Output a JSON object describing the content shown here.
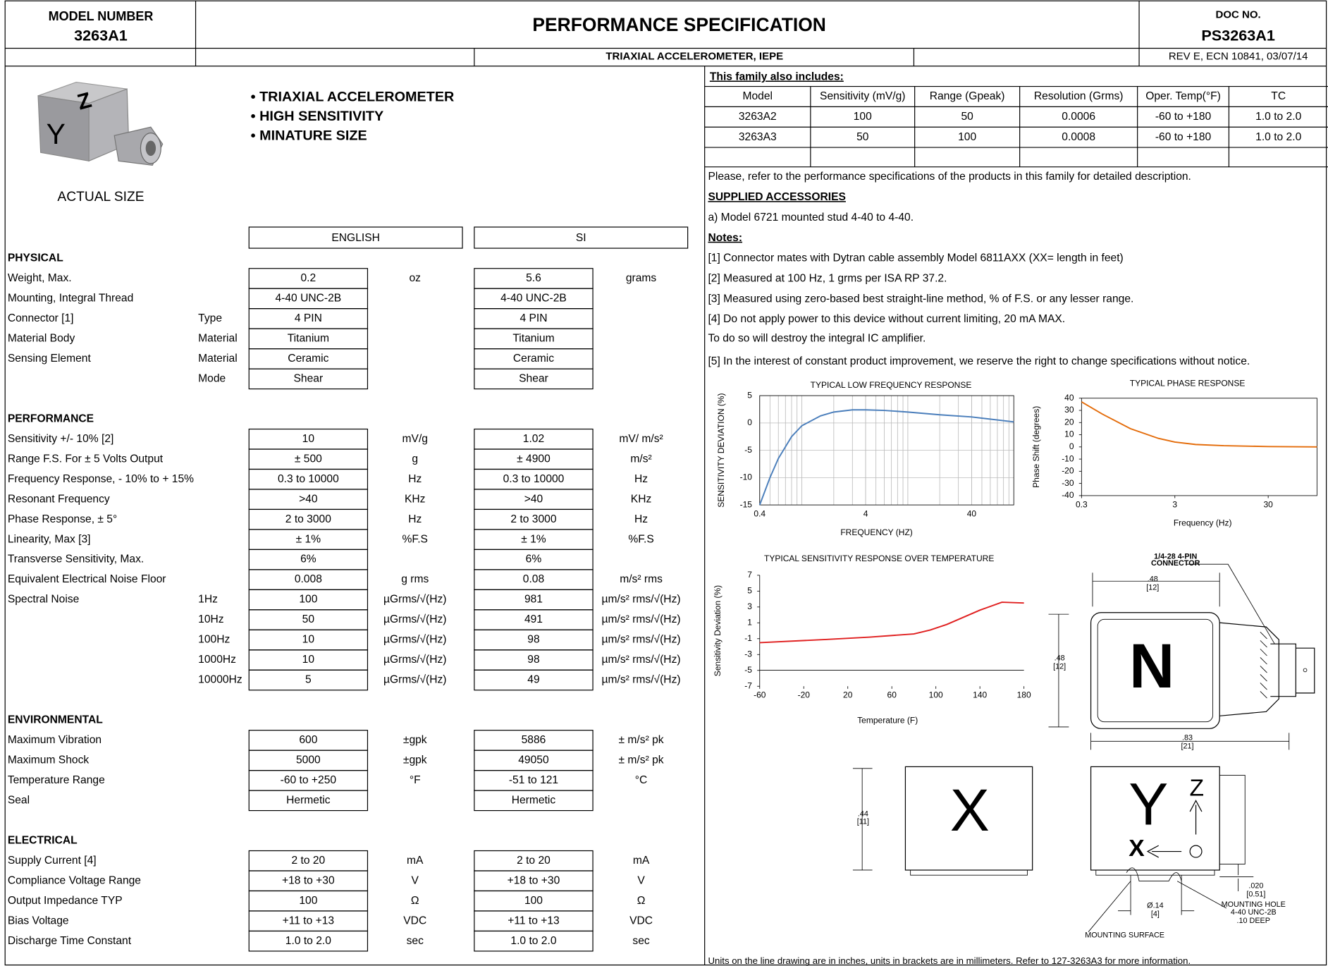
{
  "header": {
    "model_label": "MODEL NUMBER",
    "model_number": "3263A1",
    "title": "PERFORMANCE SPECIFICATION",
    "doc_label": "DOC NO.",
    "doc_number": "PS3263A1",
    "description": "TRIAXIAL ACCELEROMETER, IEPE",
    "revision": "REV E, ECN 10841, 03/07/14"
  },
  "product": {
    "photo_labels": [
      "Z",
      "Y"
    ],
    "caption": "ACTUAL SIZE",
    "features": [
      "• TRIAXIAL ACCELEROMETER",
      "• HIGH SENSITIVITY",
      "• MINATURE SIZE"
    ]
  },
  "spec_columns": [
    "ENGLISH",
    "SI"
  ],
  "sections": [
    {
      "title": "PHYSICAL",
      "rows": [
        {
          "label": "Weight, Max.",
          "english": "0.2",
          "english_unit": "oz",
          "si": "5.6",
          "si_unit": "grams"
        },
        {
          "label": "Mounting, Integral Thread",
          "english": "4-40 UNC-2B",
          "si": "4-40 UNC-2B"
        },
        {
          "label": "Connector [1]",
          "sub": "Type",
          "english": "4 PIN",
          "si": "4 PIN"
        },
        {
          "label": "Material Body",
          "sub": "Material",
          "english": "Titanium",
          "si": "Titanium"
        },
        {
          "label": "Sensing Element",
          "sub": "Material",
          "english": "Ceramic",
          "si": "Ceramic"
        },
        {
          "sub": "Mode",
          "english": "Shear",
          "si": "Shear"
        }
      ]
    },
    {
      "title": "PERFORMANCE",
      "rows": [
        {
          "label": "Sensitivity +/- 10%  [2]",
          "english": "10",
          "english_unit": "mV/g",
          "si": "1.02",
          "si_unit": "mV/ m/s²"
        },
        {
          "label": "Range F.S. For ± 5 Volts Output",
          "english": "± 500",
          "english_unit": "g",
          "si": "± 4900",
          "si_unit": "m/s²"
        },
        {
          "label": "Frequency Response, - 10% to + 15%",
          "english": "0.3 to 10000",
          "english_unit": "Hz",
          "si": "0.3 to 10000",
          "si_unit": "Hz"
        },
        {
          "label": "Resonant Frequency",
          "english": ">40",
          "english_unit": "KHz",
          "si": ">40",
          "si_unit": "KHz"
        },
        {
          "label": "Phase Response, ± 5°",
          "english": "2 to 3000",
          "english_unit": "Hz",
          "si": "2 to 3000",
          "si_unit": "Hz"
        },
        {
          "label": "Linearity, Max [3]",
          "english": "± 1%",
          "english_unit": "%F.S",
          "si": "± 1%",
          "si_unit": "%F.S"
        },
        {
          "label": "Transverse Sensitivity, Max.",
          "english": "6%",
          "si": "6%"
        },
        {
          "label": "Equivalent Electrical Noise Floor",
          "english": "0.008",
          "english_unit": "g rms",
          "si": "0.08",
          "si_unit": "m/s² rms"
        },
        {
          "label": "Spectral Noise",
          "sub": "1Hz",
          "english": "100",
          "english_unit": "µGrms/√(Hz)",
          "si": "981",
          "si_unit": "µm/s² rms/√(Hz)"
        },
        {
          "sub": "10Hz",
          "english": "50",
          "english_unit": "µGrms/√(Hz)",
          "si": "491",
          "si_unit": "µm/s² rms/√(Hz)"
        },
        {
          "sub": "100Hz",
          "english": "10",
          "english_unit": "µGrms/√(Hz)",
          "si": "98",
          "si_unit": "µm/s² rms/√(Hz)"
        },
        {
          "sub": "1000Hz",
          "english": "10",
          "english_unit": "µGrms/√(Hz)",
          "si": "98",
          "si_unit": "µm/s² rms/√(Hz)"
        },
        {
          "sub": "10000Hz",
          "english": "5",
          "english_unit": "µGrms/√(Hz)",
          "si": "49",
          "si_unit": "µm/s² rms/√(Hz)"
        }
      ]
    },
    {
      "title": "ENVIRONMENTAL",
      "rows": [
        {
          "label": "Maximum Vibration",
          "english": "600",
          "english_unit": "±gpk",
          "si": "5886",
          "si_unit": "± m/s² pk"
        },
        {
          "label": "Maximum Shock",
          "english": "5000",
          "english_unit": "±gpk",
          "si": "49050",
          "si_unit": "± m/s² pk"
        },
        {
          "label": "Temperature Range",
          "english": "-60 to +250",
          "english_unit": "°F",
          "si": "-51 to 121",
          "si_unit": "°C"
        },
        {
          "label": "Seal",
          "english": "Hermetic",
          "si": "Hermetic"
        }
      ]
    },
    {
      "title": "ELECTRICAL",
      "rows": [
        {
          "label": "Supply Current  [4]",
          "english": "2 to 20",
          "english_unit": "mA",
          "si": "2 to 20",
          "si_unit": "mA"
        },
        {
          "label": "Compliance Voltage Range",
          "english": "+18 to +30",
          "english_unit": "V",
          "si": "+18 to +30",
          "si_unit": "V"
        },
        {
          "label": "Output Impedance TYP",
          "english": "100",
          "english_unit": "Ω",
          "si": "100",
          "si_unit": "Ω"
        },
        {
          "label": " Bias Voltage",
          "english": "+11 to +13",
          "english_unit": "VDC",
          "si": "+11 to +13",
          "si_unit": "VDC"
        },
        {
          "label": "Discharge Time Constant",
          "english": "1.0 to 2.0",
          "english_unit": "sec",
          "si": "1.0 to 2.0",
          "si_unit": "sec"
        }
      ]
    }
  ],
  "family": {
    "heading": "This family also includes:",
    "columns": [
      "Model",
      "Sensitivity (mV/g)",
      "Range (Gpeak)",
      "Resolution (Grms)",
      "Oper. Temp(°F)",
      "TC"
    ],
    "rows": [
      [
        "3263A2",
        "100",
        "50",
        "0.0006",
        "-60 to +180",
        "1.0 to 2.0"
      ],
      [
        "3263A3",
        "50",
        "100",
        "0.0008",
        "-60 to +180",
        "1.0 to 2.0"
      ]
    ],
    "note": "Please, refer to the performance specifications of the products in this family for detailed description."
  },
  "accessories": {
    "heading": "SUPPLIED ACCESSORIES",
    "items": [
      "a) Model 6721 mounted stud 4-40 to 4-40."
    ]
  },
  "notes": {
    "heading": "Notes:",
    "items": [
      "[1] Connector mates with Dytran cable assembly Model 6811AXX (XX= length in feet)",
      "[2] Measured at 100 Hz, 1 grms per ISA RP 37.2.",
      "[3] Measured using zero-based best straight-line method, % of F.S. or any lesser range.",
      "[4] Do not apply power to this device without current limiting, 20 mA  MAX.",
      "To do so will destroy the integral IC amplifier.",
      "[5] In the interest of constant product improvement, we reserve the right to change specifications without notice."
    ]
  },
  "charts": [
    {
      "type": "line",
      "title": "TYPICAL LOW FREQUENCY RESPONSE",
      "x_label": "FREQUENCY (HZ)",
      "y_label": "SENSITIVITY DEVIATION (%)",
      "log_x": true,
      "grid": true,
      "xlim": [
        0.4,
        100
      ],
      "xticks": [
        0.4,
        4,
        40
      ],
      "ylim": [
        -15,
        5
      ],
      "yticks": [
        5,
        0,
        -5,
        -10,
        -15
      ],
      "series": [
        {
          "color": "#4a7ebb",
          "x": [
            0.4,
            0.5,
            0.6,
            0.8,
            1,
            1.5,
            2,
            3,
            4,
            6,
            10,
            20,
            40,
            100
          ],
          "values": [
            -15,
            -10,
            -6.5,
            -2.5,
            -0.5,
            1.3,
            2,
            2.4,
            2.4,
            2.3,
            2,
            1.5,
            1.1,
            0.2
          ]
        }
      ]
    },
    {
      "type": "line",
      "title": "TYPICAL PHASE RESPONSE",
      "x_label": "Frequency (Hz)",
      "y_label": "Phase Shift (degrees)",
      "log_x": true,
      "grid": false,
      "xlim": [
        0.3,
        100
      ],
      "xticks": [
        0.3,
        3,
        30
      ],
      "ylim": [
        -40,
        40
      ],
      "yticks": [
        40,
        30,
        20,
        10,
        0,
        -10,
        -20,
        -30,
        -40
      ],
      "series": [
        {
          "color": "#e46c0a",
          "x": [
            0.3,
            0.5,
            1,
            2,
            3,
            5,
            10,
            30,
            100
          ],
          "values": [
            37,
            27,
            15,
            7,
            4,
            2,
            1,
            0.3,
            0
          ]
        }
      ]
    },
    {
      "type": "line",
      "title": "TYPICAL SENSITIVITY RESPONSE OVER TEMPERATURE",
      "x_label": "Temperature (F)",
      "y_label": "Sensitivity Deviation (%)",
      "log_x": false,
      "grid": false,
      "xlim": [
        -60,
        180
      ],
      "xticks": [
        -60,
        -20,
        20,
        60,
        100,
        140,
        180
      ],
      "ylim": [
        -7,
        7
      ],
      "yticks": [
        7,
        5,
        3,
        1,
        -1,
        -3,
        -5,
        -7
      ],
      "series": [
        {
          "color": "#e02020",
          "x": [
            -60,
            0,
            40,
            80,
            95,
            110,
            140,
            160,
            180
          ],
          "values": [
            -1.5,
            -1.1,
            -0.8,
            -0.4,
            0.1,
            0.8,
            2.6,
            3.6,
            3.5
          ]
        }
      ]
    }
  ],
  "drawing": {
    "labels": [
      "1/4-28 4-PIN",
      "CONNECTOR",
      ".48",
      "[12]",
      ".48",
      "[12]",
      ".83",
      "[21]",
      ".44",
      "[11]",
      ".020",
      "[0.51]",
      "Ø.14",
      "[4]",
      "MOUNTING HOLE",
      "4-40 UNC-2B",
      ".10 DEEP",
      "MOUNTING SURFACE",
      "N",
      "X",
      "Y",
      "Z",
      "X"
    ],
    "footnote": "Units on the line drawing are in inches, units in brackets are in millimeters. Refer to 127-3263A3 for more information."
  }
}
